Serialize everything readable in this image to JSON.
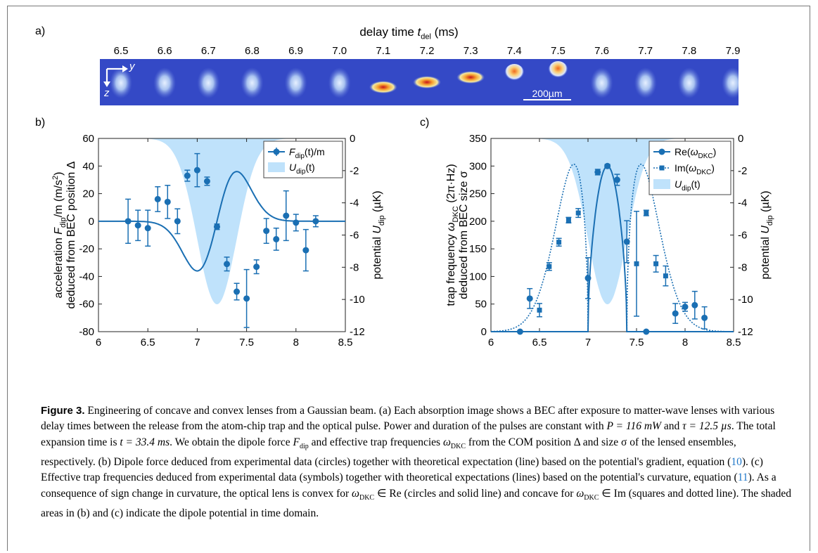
{
  "panel_labels": {
    "a": "a)",
    "b": "b)",
    "c": "c)"
  },
  "strip": {
    "title_prefix": "delay time ",
    "title_var": "t",
    "title_sub": "del",
    "title_unit": " (ms)",
    "ticks": [
      "6.5",
      "6.6",
      "6.7",
      "6.8",
      "6.9",
      "7.0",
      "7.1",
      "7.2",
      "7.3",
      "7.4",
      "7.5",
      "7.6",
      "7.7",
      "7.8",
      "7.9"
    ],
    "axis_y": "y",
    "axis_z": "z",
    "scalebar": "200µm",
    "background_color": "#3346c8"
  },
  "chart_data": [
    {
      "type": "scatter",
      "panel": "b",
      "xlabel_prefix": "delay time ",
      "xlabel_var": "t",
      "xlabel_sub": "del",
      "xlabel_unit": " (ms)",
      "ylabel_line1_a": "acceleration ",
      "ylabel_line1_b": "F",
      "ylabel_line1_sub": "dip",
      "ylabel_line1_c": "/m (m/s",
      "ylabel_line1_sup": "2",
      "ylabel_line1_d": ")",
      "ylabel_line2": "deduced from BEC position Δ",
      "y2label_a": "potential ",
      "y2label_b": "U",
      "y2label_sub": "dip",
      "y2label_c": " (µK)",
      "xlim": [
        6,
        8.5
      ],
      "ylim": [
        -80,
        60
      ],
      "y2lim": [
        -12,
        0
      ],
      "xticks": [
        "6",
        "6.5",
        "7",
        "7.5",
        "8",
        "8.5"
      ],
      "yticks": [
        "60",
        "40",
        "20",
        "0",
        "-20",
        "-40",
        "-60",
        "-80"
      ],
      "y2ticks": [
        "0",
        "-2",
        "-4",
        "-6",
        "-8",
        "-10",
        "-12"
      ],
      "legend": [
        {
          "label_a": "F",
          "label_sub": "dip",
          "label_b": "(t)/m"
        },
        {
          "label_a": "U",
          "label_sub": "dip",
          "label_b": "(t)"
        }
      ],
      "points": [
        {
          "x": 6.3,
          "y": 0,
          "err": 16
        },
        {
          "x": 6.4,
          "y": -3,
          "err": 11
        },
        {
          "x": 6.5,
          "y": -5,
          "err": 13
        },
        {
          "x": 6.6,
          "y": 16,
          "err": 9
        },
        {
          "x": 6.7,
          "y": 14,
          "err": 12
        },
        {
          "x": 6.8,
          "y": 0,
          "err": 9
        },
        {
          "x": 6.9,
          "y": 33,
          "err": 4
        },
        {
          "x": 7.0,
          "y": 37,
          "err": 12
        },
        {
          "x": 7.1,
          "y": 29,
          "err": 3
        },
        {
          "x": 7.2,
          "y": -4,
          "err": 2
        },
        {
          "x": 7.3,
          "y": -31,
          "err": 5
        },
        {
          "x": 7.4,
          "y": -51,
          "err": 6
        },
        {
          "x": 7.5,
          "y": -56,
          "err": 21
        },
        {
          "x": 7.6,
          "y": -33,
          "err": 5
        },
        {
          "x": 7.7,
          "y": -7,
          "err": 9
        },
        {
          "x": 7.8,
          "y": -13,
          "err": 8
        },
        {
          "x": 7.9,
          "y": 4,
          "err": 18
        },
        {
          "x": 8.0,
          "y": -1,
          "err": 6
        },
        {
          "x": 8.1,
          "y": -21,
          "err": 15
        },
        {
          "x": 8.2,
          "y": 0,
          "err": 4
        }
      ],
      "potential": {
        "center_ms": 7.2,
        "width_ms": 0.2,
        "depth_uK": -10.3
      },
      "colors": {
        "data": "#1a6fb3",
        "shade": "#bfe2fb"
      }
    },
    {
      "type": "scatter",
      "panel": "c",
      "xlabel_prefix": "delay time ",
      "xlabel_var": "t",
      "xlabel_sub": "del",
      "xlabel_unit": " (ms)",
      "ylabel_line1_a": "trap frequency ",
      "ylabel_line1_b": "ω",
      "ylabel_line1_sub": "DKC",
      "ylabel_line1_c": " (2π·Hz)",
      "ylabel_line2": "deduced from BEC size σ",
      "y2label_a": "potential ",
      "y2label_b": "U",
      "y2label_sub": "dip",
      "y2label_c": " (µK)",
      "xlim": [
        6,
        8.5
      ],
      "ylim": [
        0,
        350
      ],
      "y2lim": [
        -12,
        0
      ],
      "xticks": [
        "6",
        "6.5",
        "7",
        "7.5",
        "8",
        "8.5"
      ],
      "yticks": [
        "350",
        "300",
        "250",
        "200",
        "150",
        "100",
        "50",
        "0"
      ],
      "y2ticks": [
        "0",
        "-2",
        "-4",
        "-6",
        "-8",
        "-10",
        "-12"
      ],
      "legend": [
        {
          "label_a": "Re(",
          "label_b": "ω",
          "label_sub": "DKC",
          "label_c": ")"
        },
        {
          "label_a": "Im(",
          "label_b": "ω",
          "label_sub": "DKC",
          "label_c": ")"
        },
        {
          "label_a": "U",
          "label_sub": "dip",
          "label_b": "(t)"
        }
      ],
      "re_points": [
        {
          "x": 6.3,
          "y": 0,
          "err": 0
        },
        {
          "x": 6.4,
          "y": 60,
          "err": 18
        },
        {
          "x": 7.0,
          "y": 97,
          "err": 37
        },
        {
          "x": 7.1,
          "y": 289,
          "err": 5
        },
        {
          "x": 7.2,
          "y": 300,
          "err": 3
        },
        {
          "x": 7.3,
          "y": 275,
          "err": 10
        },
        {
          "x": 7.4,
          "y": 163,
          "err": 38
        },
        {
          "x": 7.6,
          "y": 0,
          "err": 0
        },
        {
          "x": 7.9,
          "y": 33,
          "err": 18
        },
        {
          "x": 8.0,
          "y": 45,
          "err": 8
        },
        {
          "x": 8.1,
          "y": 48,
          "err": 25
        },
        {
          "x": 8.2,
          "y": 25,
          "err": 20
        }
      ],
      "im_points": [
        {
          "x": 6.5,
          "y": 39,
          "err": 12
        },
        {
          "x": 6.6,
          "y": 118,
          "err": 7
        },
        {
          "x": 6.7,
          "y": 162,
          "err": 7
        },
        {
          "x": 6.8,
          "y": 202,
          "err": 5
        },
        {
          "x": 6.9,
          "y": 215,
          "err": 8
        },
        {
          "x": 7.5,
          "y": 123,
          "err": 95
        },
        {
          "x": 7.6,
          "y": 215,
          "err": 5
        },
        {
          "x": 7.7,
          "y": 123,
          "err": 15
        },
        {
          "x": 7.8,
          "y": 101,
          "err": 18
        }
      ],
      "potential": {
        "center_ms": 7.2,
        "width_ms": 0.2,
        "depth_uK": -10.3
      },
      "colors": {
        "data": "#1a6fb3",
        "shade": "#bfe2fb"
      }
    }
  ],
  "caption": {
    "figure_label": "Figure 3.",
    "s1": " Engineering of concave and convex lenses from a Gaussian beam. (a) Each absorption image shows a BEC after exposure to matter-wave lenses with various delay times between the release from the atom-chip trap and the optical pulse. Power and duration of the pulses are constant with ",
    "P_expr": "P = 116 mW",
    "s2": " and ",
    "tau_expr": "τ = 12.5 µs",
    "s3": ". The total expansion time is ",
    "t_expr": "t = 33.4 ms",
    "s4": ". We obtain the dipole force ",
    "Fdip": "F",
    "Fdip_sub": "dip",
    "s5": " and effective trap frequencies ",
    "omega": "ω",
    "omega_sub": "DKC",
    "s6": " from the COM position Δ and size σ of the lensed ensembles, respectively. (b) Dipole force deduced from experimental data (circles) together with theoretical expectation (line) based on the potential's gradient, equation (",
    "eq10": "10",
    "s7": "). (c) Effective trap frequencies deduced from experimental data (symbols) together with theoretical expectations (lines) based on the potential's curvature, equation (",
    "eq11": "11",
    "s8": "). As a consequence of sign change in curvature, the optical lens is convex for ",
    "s9": " ∈ Re (circles and solid line) and concave for ",
    "s10": " ∈ Im (squares and dotted line). The shaded areas in (b) and (c) indicate the dipole potential in time domain."
  }
}
